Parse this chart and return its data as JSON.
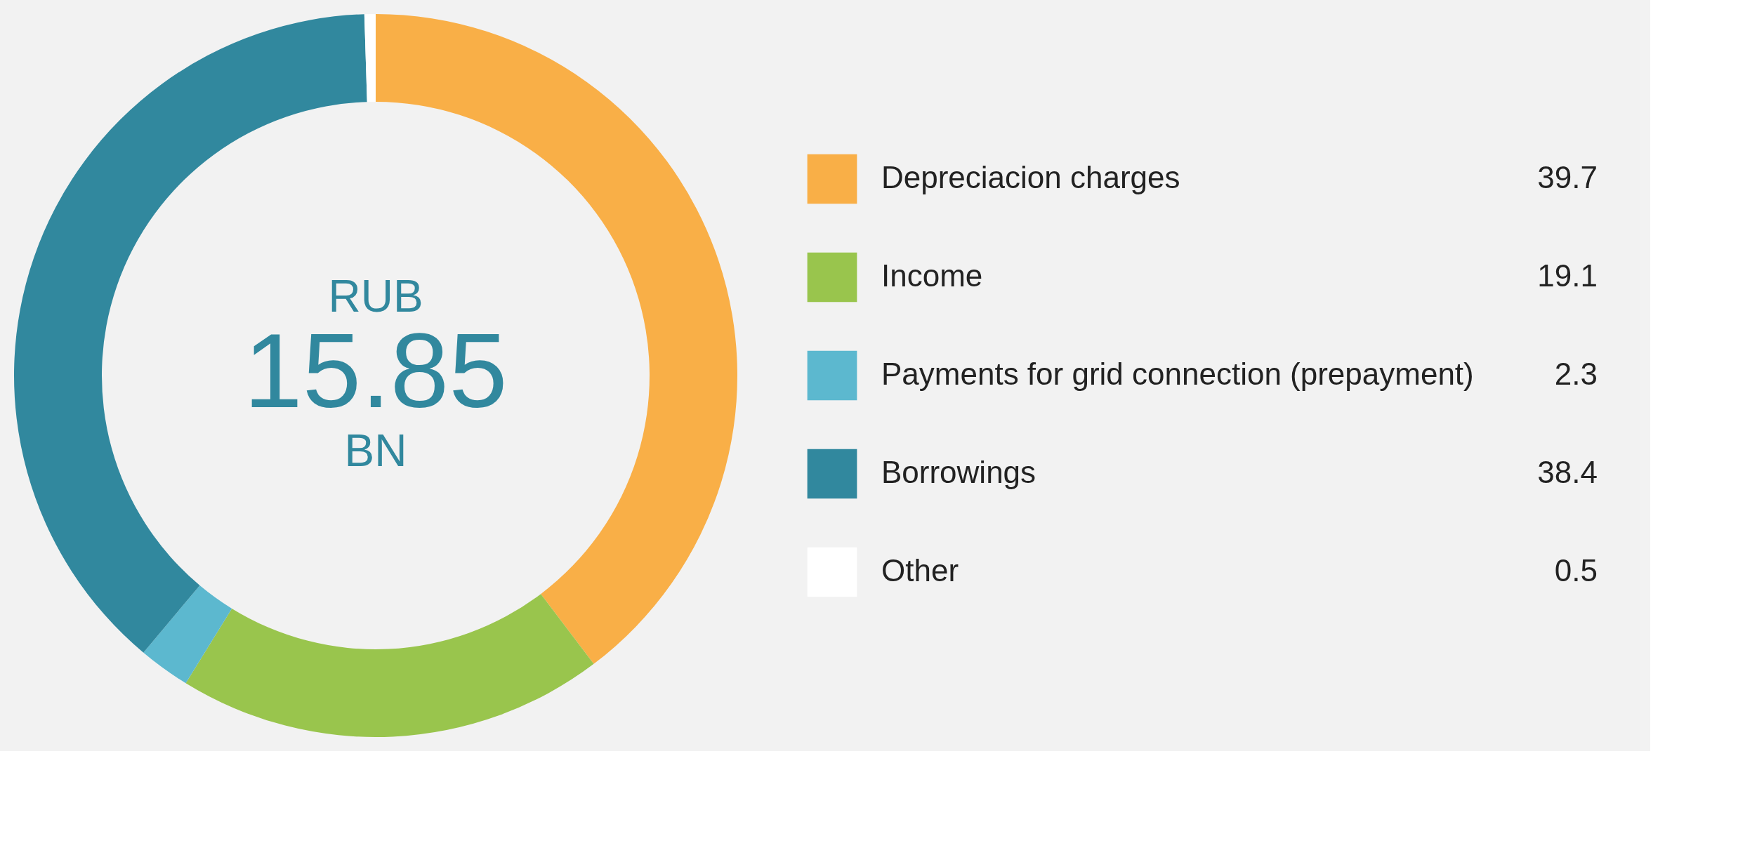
{
  "chart_data": {
    "type": "donut",
    "categories": [
      "Depreciacion charges",
      "Income",
      "Payments for grid connection (prepayment)",
      "Borrowings",
      "Other"
    ],
    "values": [
      39.7,
      19.1,
      2.3,
      38.4,
      0.5
    ],
    "colors": [
      "#f9af47",
      "#99c54d",
      "#5cb8cf",
      "#31889e",
      "#ffffff"
    ],
    "annotations": [
      "RUB",
      "15.85",
      "BN"
    ],
    "legend": "right",
    "data_labels": true
  }
}
